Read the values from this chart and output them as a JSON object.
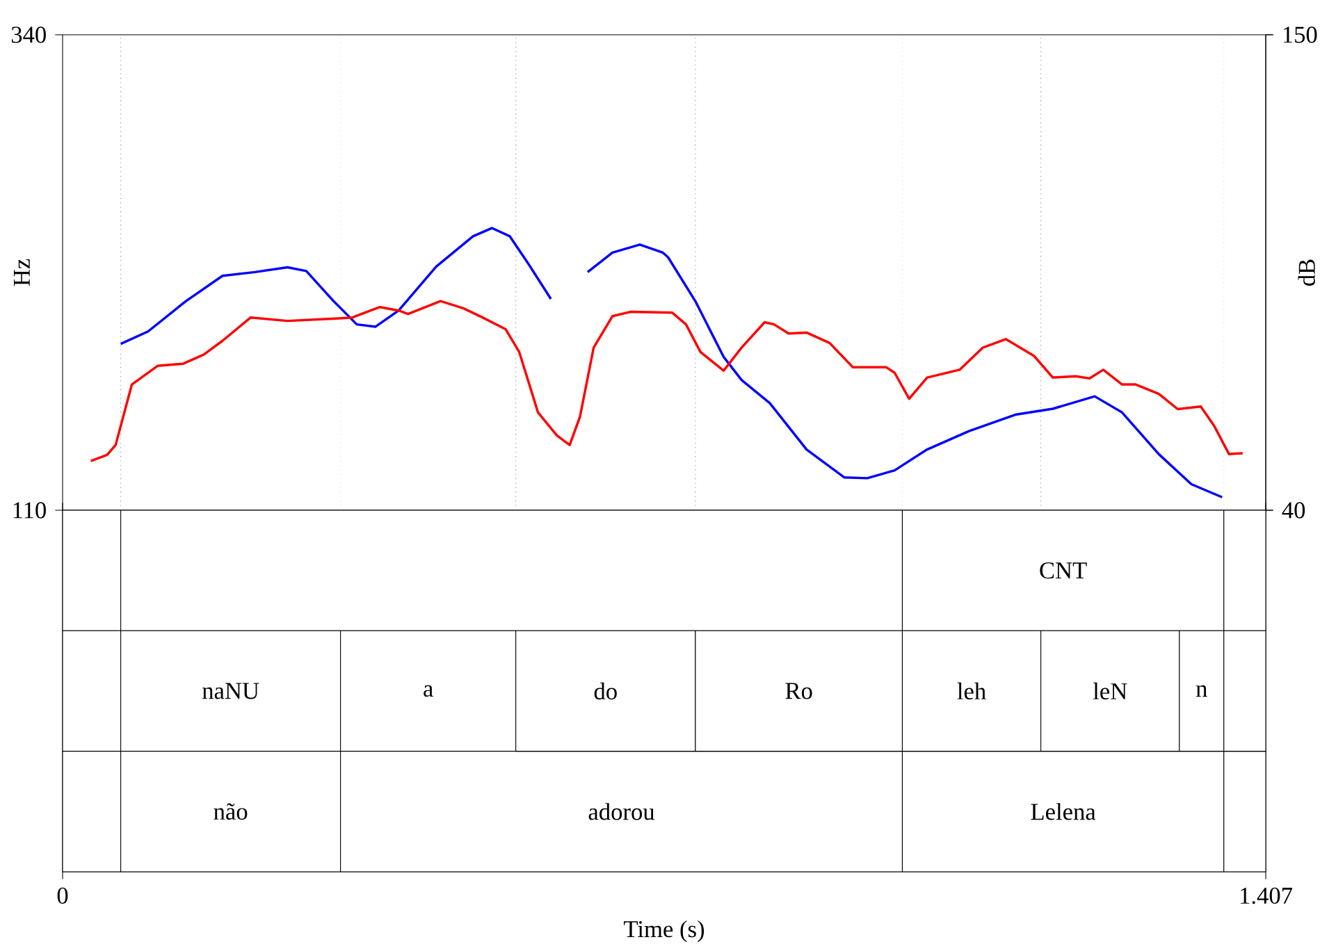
{
  "chart_data": [
    {
      "type": "line",
      "ylabel": "Hz",
      "y2label": "dB",
      "xlim": [
        0,
        1.407
      ],
      "ylim": [
        110,
        340
      ],
      "yticks": [
        110,
        340
      ],
      "y2lim": [
        40,
        150
      ],
      "y2ticks": [
        40,
        150
      ],
      "tick_labels": "y",
      "line_style": "solid",
      "series": [
        {
          "color": "#0000ff",
          "x": [
            0.068,
            0.1,
            0.144,
            0.187,
            0.225,
            0.263,
            0.285,
            0.317,
            0.344,
            0.366,
            0.393,
            0.437,
            0.48,
            0.502,
            0.523,
            0.545,
            0.571,
            0.593,
            0.614,
            0.643,
            0.675,
            0.702,
            0.708,
            0.74,
            0.773,
            0.794,
            0.827,
            0.87,
            0.914,
            0.941,
            0.973,
            1.011,
            1.06,
            1.114,
            1.158,
            1.207,
            1.239,
            1.282,
            1.32,
            1.356
          ],
          "values": [
            190.5,
            196.5,
            211.1,
            223.4,
            225.2,
            227.5,
            225.7,
            211.1,
            199.9,
            198.8,
            206.6,
            227.9,
            242.5,
            246.5,
            242.5,
            229.0,
            212.2,
            null,
            225.2,
            234.6,
            238.5,
            234.6,
            232.4,
            211.1,
            184.2,
            173.0,
            161.8,
            139.4,
            125.9,
            125.5,
            129.3,
            139.4,
            148.3,
            156.2,
            159.1,
            165.1,
            157.3,
            137.1,
            122.6,
            116.3
          ]
        },
        {
          "color": "#ff0000",
          "axis": "y2",
          "x": [
            0.033,
            0.052,
            0.062,
            0.081,
            0.111,
            0.141,
            0.165,
            0.187,
            0.22,
            0.263,
            0.323,
            0.339,
            0.371,
            0.393,
            0.404,
            0.442,
            0.469,
            0.491,
            0.518,
            0.534,
            0.556,
            0.578,
            0.593,
            0.605,
            0.621,
            0.643,
            0.664,
            0.713,
            0.729,
            0.746,
            0.773,
            0.794,
            0.821,
            0.832,
            0.849,
            0.87,
            0.897,
            0.924,
            0.963,
            0.973,
            0.99,
            1.011,
            1.049,
            1.076,
            1.103,
            1.136,
            1.158,
            1.185,
            1.201,
            1.217,
            1.239,
            1.255,
            1.282,
            1.304,
            1.331,
            1.347,
            1.364,
            1.38
          ],
          "values": [
            51.4,
            52.8,
            55.1,
            69.1,
            73.4,
            73.9,
            76.0,
            79.2,
            84.6,
            83.8,
            84.4,
            84.6,
            87.0,
            86.2,
            85.4,
            88.4,
            86.7,
            84.6,
            81.9,
            76.6,
            62.6,
            57.3,
            55.1,
            61.6,
            77.6,
            84.9,
            85.9,
            85.7,
            83.0,
            76.6,
            72.3,
            77.6,
            83.5,
            83.0,
            80.9,
            81.1,
            78.7,
            73.1,
            73.1,
            71.8,
            65.8,
            70.7,
            72.5,
            77.6,
            79.6,
            75.7,
            70.7,
            71.0,
            70.5,
            72.5,
            69.1,
            69.1,
            66.9,
            63.4,
            64.0,
            59.4,
            53.0,
            53.2
          ]
        }
      ],
      "ref_lines": [
        {
          "axis": "x",
          "value": 0.068,
          "color": "#808080",
          "line_style": "dotted"
        },
        {
          "axis": "x",
          "value": 0.325,
          "color": "#d9d9d9",
          "line_style": "dotted"
        },
        {
          "axis": "x",
          "value": 0.53,
          "color": "#808080",
          "line_style": "dotted"
        },
        {
          "axis": "x",
          "value": 0.74,
          "color": "#808080",
          "line_style": "dotted"
        },
        {
          "axis": "x",
          "value": 0.982,
          "color": "#d9d9d9",
          "line_style": "dotted"
        },
        {
          "axis": "x",
          "value": 1.144,
          "color": "#808080",
          "line_style": "dotted"
        },
        {
          "axis": "x",
          "value": 1.358,
          "color": "#d9d9d9",
          "line_style": "dotted"
        }
      ]
    },
    {
      "type": "bar",
      "orientation": "horizontal",
      "stacked": true,
      "categories": [
        null,
        null,
        null
      ],
      "xlabel": "Time (s)",
      "xlim": [
        0,
        1.407
      ],
      "xticks": [
        0,
        1.407
      ],
      "tick_labels": "x",
      "series": [
        {
          "color": "#ffffff",
          "values": [
            0.068,
            0.068,
            0.068
          ],
          "value_labels": [
            null,
            null,
            null
          ]
        },
        {
          "color": "#ffffff",
          "values": [
            0.914,
            0.257,
            0.257
          ],
          "value_labels": [
            null,
            "naNU",
            "não"
          ]
        },
        {
          "color": "#ffffff",
          "values": [
            0.376,
            0.205,
            0.657
          ],
          "value_labels": [
            "CNT",
            "a",
            "adorou"
          ]
        },
        {
          "color": "#ffffff",
          "values": [
            0.049,
            0.21,
            0.376
          ],
          "value_labels": [
            null,
            "do",
            "Lelena"
          ]
        },
        {
          "color": "#ffffff",
          "values": [
            null,
            0.242,
            0.049
          ],
          "value_labels": [
            null,
            "Ro",
            null
          ]
        },
        {
          "color": "#ffffff",
          "values": [
            null,
            0.162,
            null
          ],
          "value_labels": [
            null,
            "leh",
            null
          ]
        },
        {
          "color": "#ffffff",
          "values": [
            null,
            0.162,
            null
          ],
          "value_labels": [
            null,
            "leN",
            null
          ]
        },
        {
          "color": "#ffffff",
          "values": [
            null,
            0.052,
            null
          ],
          "value_labels": [
            null,
            "n",
            null
          ]
        },
        {
          "color": "#ffffff",
          "values": [
            null,
            0.049,
            null
          ],
          "value_labels": [
            null,
            null,
            null
          ]
        }
      ]
    }
  ]
}
